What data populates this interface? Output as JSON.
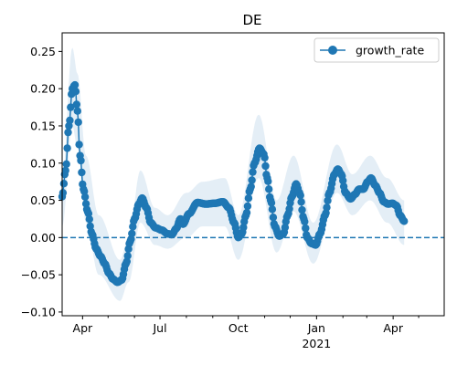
{
  "chart_data": {
    "type": "line",
    "title": "DE",
    "xlabel": "",
    "ylabel": "",
    "x_range": [
      "2020-03-08",
      "2021-05-31"
    ],
    "ylim": [
      -0.105,
      0.275
    ],
    "y_ticks": [
      -0.1,
      -0.05,
      0.0,
      0.05,
      0.1,
      0.15,
      0.2,
      0.25
    ],
    "y_tick_labels": [
      "−0.10",
      "−0.05",
      "0.00",
      "0.05",
      "0.10",
      "0.15",
      "0.20",
      "0.25"
    ],
    "x_major_ticks": [
      {
        "date": "2020-04-01",
        "label": "Apr",
        "sublabel": ""
      },
      {
        "date": "2020-07-01",
        "label": "Jul",
        "sublabel": ""
      },
      {
        "date": "2020-10-01",
        "label": "Oct",
        "sublabel": ""
      },
      {
        "date": "2021-01-01",
        "label": "Jan",
        "sublabel": "2021"
      },
      {
        "date": "2021-04-01",
        "label": "Apr",
        "sublabel": ""
      }
    ],
    "x_minor_ticks": [
      "2020-05-01",
      "2020-06-01",
      "2020-08-01",
      "2020-09-01",
      "2020-11-01",
      "2020-12-01",
      "2021-02-01",
      "2021-03-01",
      "2021-05-01"
    ],
    "reference_line": {
      "y": 0.0,
      "style": "dashed",
      "color": "#1f77b4"
    },
    "legend": {
      "position": "top-right",
      "entries": [
        "growth_rate"
      ]
    },
    "grid": false,
    "colors": {
      "series": "#1f77b4",
      "band": "#1f77b4"
    },
    "series": [
      {
        "name": "growth_rate",
        "marker": "circle",
        "keypoints": [
          [
            "2020-03-08",
            0.055
          ],
          [
            "2020-03-12",
            0.09
          ],
          [
            "2020-03-16",
            0.15
          ],
          [
            "2020-03-20",
            0.2
          ],
          [
            "2020-03-23",
            0.205
          ],
          [
            "2020-03-26",
            0.17
          ],
          [
            "2020-03-29",
            0.11
          ],
          [
            "2020-04-02",
            0.065
          ],
          [
            "2020-04-07",
            0.035
          ],
          [
            "2020-04-12",
            0.005
          ],
          [
            "2020-04-17",
            -0.015
          ],
          [
            "2020-04-22",
            -0.025
          ],
          [
            "2020-04-27",
            -0.035
          ],
          [
            "2020-05-02",
            -0.048
          ],
          [
            "2020-05-07",
            -0.056
          ],
          [
            "2020-05-12",
            -0.06
          ],
          [
            "2020-05-17",
            -0.057
          ],
          [
            "2020-05-22",
            -0.035
          ],
          [
            "2020-05-27",
            -0.005
          ],
          [
            "2020-06-01",
            0.025
          ],
          [
            "2020-06-06",
            0.045
          ],
          [
            "2020-06-10",
            0.053
          ],
          [
            "2020-06-15",
            0.04
          ],
          [
            "2020-06-20",
            0.02
          ],
          [
            "2020-06-26",
            0.013
          ],
          [
            "2020-07-03",
            0.01
          ],
          [
            "2020-07-10",
            0.005
          ],
          [
            "2020-07-15",
            0.004
          ],
          [
            "2020-07-20",
            0.012
          ],
          [
            "2020-07-25",
            0.025
          ],
          [
            "2020-07-28",
            0.018
          ],
          [
            "2020-08-04",
            0.032
          ],
          [
            "2020-08-14",
            0.047
          ],
          [
            "2020-08-24",
            0.045
          ],
          [
            "2020-09-03",
            0.046
          ],
          [
            "2020-09-13",
            0.048
          ],
          [
            "2020-09-20",
            0.04
          ],
          [
            "2020-09-26",
            0.02
          ],
          [
            "2020-10-01",
            0.0
          ],
          [
            "2020-10-05",
            0.005
          ],
          [
            "2020-10-10",
            0.03
          ],
          [
            "2020-10-15",
            0.065
          ],
          [
            "2020-10-20",
            0.1
          ],
          [
            "2020-10-26",
            0.12
          ],
          [
            "2020-10-31",
            0.112
          ],
          [
            "2020-11-04",
            0.08
          ],
          [
            "2020-11-08",
            0.05
          ],
          [
            "2020-11-13",
            0.015
          ],
          [
            "2020-11-18",
            0.002
          ],
          [
            "2020-11-23",
            0.005
          ],
          [
            "2020-11-28",
            0.03
          ],
          [
            "2020-12-03",
            0.055
          ],
          [
            "2020-12-08",
            0.072
          ],
          [
            "2020-12-12",
            0.06
          ],
          [
            "2020-12-17",
            0.025
          ],
          [
            "2020-12-21",
            0.0
          ],
          [
            "2020-12-26",
            -0.008
          ],
          [
            "2020-12-31",
            -0.01
          ],
          [
            "2021-01-05",
            0.005
          ],
          [
            "2021-01-11",
            0.03
          ],
          [
            "2021-01-16",
            0.06
          ],
          [
            "2021-01-22",
            0.085
          ],
          [
            "2021-01-26",
            0.092
          ],
          [
            "2021-01-30",
            0.085
          ],
          [
            "2021-02-04",
            0.06
          ],
          [
            "2021-02-10",
            0.052
          ],
          [
            "2021-02-15",
            0.058
          ],
          [
            "2021-02-20",
            0.065
          ],
          [
            "2021-02-25",
            0.065
          ],
          [
            "2021-03-02",
            0.075
          ],
          [
            "2021-03-06",
            0.08
          ],
          [
            "2021-03-11",
            0.07
          ],
          [
            "2021-03-16",
            0.06
          ],
          [
            "2021-03-21",
            0.048
          ],
          [
            "2021-03-26",
            0.045
          ],
          [
            "2021-03-31",
            0.046
          ],
          [
            "2021-04-05",
            0.043
          ],
          [
            "2021-04-09",
            0.03
          ],
          [
            "2021-04-14",
            0.022
          ]
        ]
      }
    ],
    "uncertainty_band": {
      "lower": [
        [
          "2020-03-08",
          0.015
        ],
        [
          "2020-03-20",
          0.15
        ],
        [
          "2020-03-26",
          0.12
        ],
        [
          "2020-04-05",
          0.02
        ],
        [
          "2020-04-20",
          -0.05
        ],
        [
          "2020-05-15",
          -0.085
        ],
        [
          "2020-05-25",
          -0.06
        ],
        [
          "2020-06-08",
          0.02
        ],
        [
          "2020-06-25",
          -0.01
        ],
        [
          "2020-07-10",
          -0.015
        ],
        [
          "2020-08-01",
          0.0
        ],
        [
          "2020-08-20",
          0.015
        ],
        [
          "2020-09-15",
          0.015
        ],
        [
          "2020-10-01",
          -0.03
        ],
        [
          "2020-10-25",
          0.08
        ],
        [
          "2020-11-15",
          -0.02
        ],
        [
          "2020-12-05",
          0.035
        ],
        [
          "2020-12-28",
          -0.035
        ],
        [
          "2021-01-25",
          0.06
        ],
        [
          "2021-02-12",
          0.03
        ],
        [
          "2021-03-05",
          0.05
        ],
        [
          "2021-03-25",
          0.02
        ],
        [
          "2021-04-14",
          -0.01
        ]
      ],
      "upper": [
        [
          "2020-03-08",
          0.08
        ],
        [
          "2020-03-20",
          0.255
        ],
        [
          "2020-03-26",
          0.22
        ],
        [
          "2020-04-05",
          0.11
        ],
        [
          "2020-04-20",
          0.03
        ],
        [
          "2020-05-15",
          -0.03
        ],
        [
          "2020-05-25",
          0.0
        ],
        [
          "2020-06-08",
          0.09
        ],
        [
          "2020-06-25",
          0.04
        ],
        [
          "2020-07-10",
          0.03
        ],
        [
          "2020-08-01",
          0.06
        ],
        [
          "2020-08-20",
          0.075
        ],
        [
          "2020-09-15",
          0.08
        ],
        [
          "2020-10-01",
          0.03
        ],
        [
          "2020-10-25",
          0.165
        ],
        [
          "2020-11-15",
          0.05
        ],
        [
          "2020-12-05",
          0.11
        ],
        [
          "2020-12-28",
          0.02
        ],
        [
          "2021-01-25",
          0.125
        ],
        [
          "2021-02-12",
          0.085
        ],
        [
          "2021-03-05",
          0.11
        ],
        [
          "2021-03-25",
          0.08
        ],
        [
          "2021-04-14",
          0.05
        ]
      ]
    }
  }
}
